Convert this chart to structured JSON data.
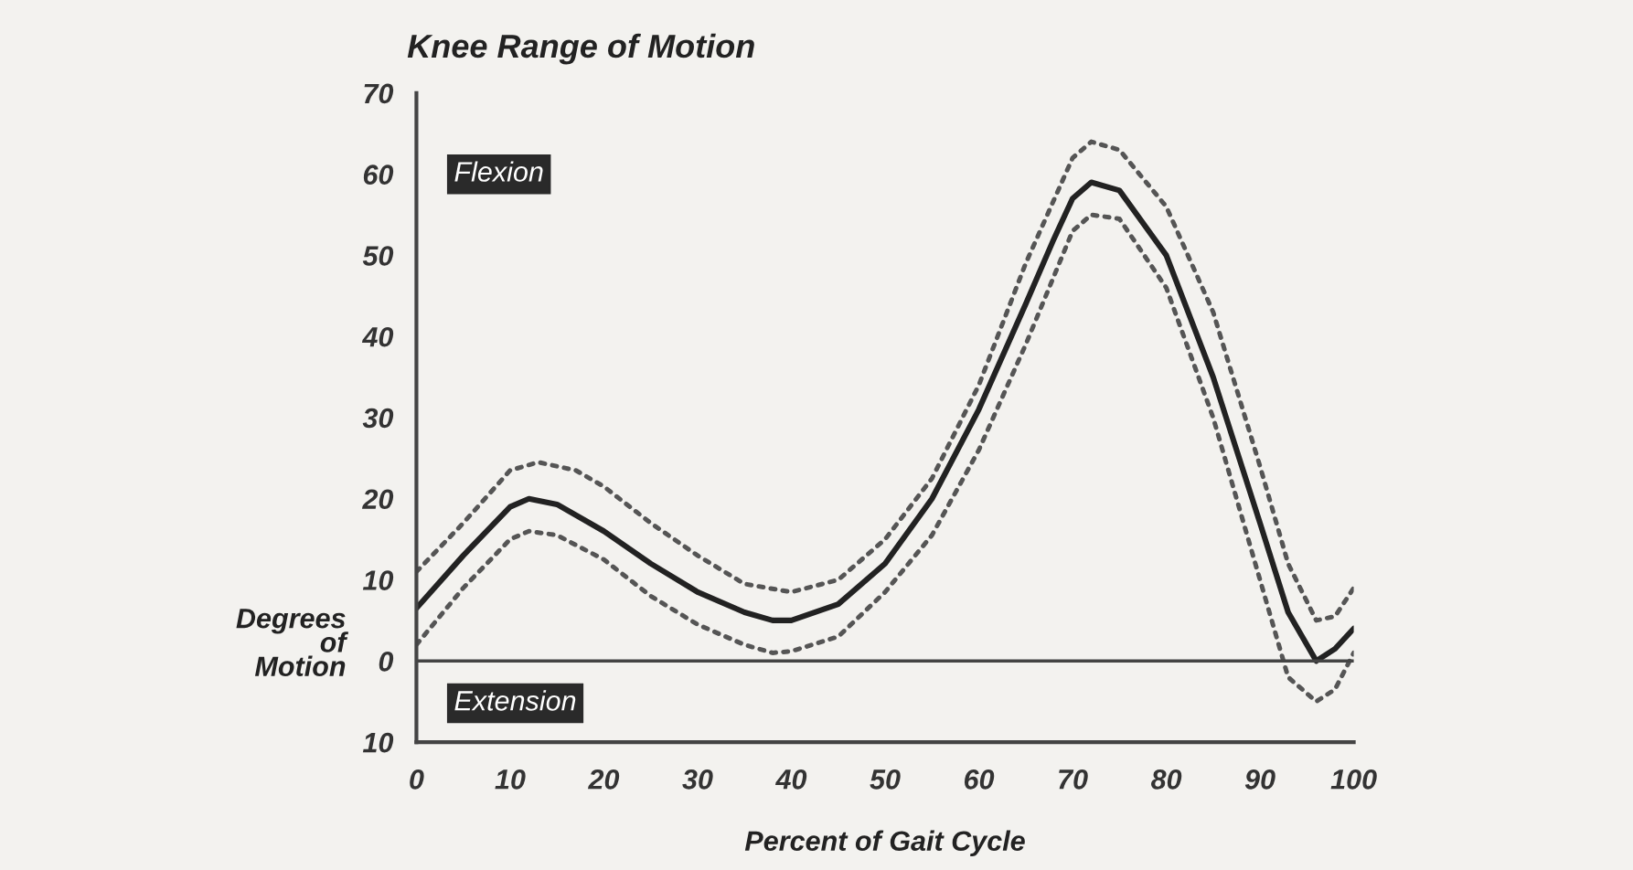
{
  "chart_data": {
    "type": "line",
    "title": "Knee Range of Motion",
    "xlabel": "Percent of Gait Cycle",
    "ylabel": "Degrees\nof\nMotion",
    "annotations": [
      "Flexion",
      "Extension"
    ],
    "x": [
      0,
      5,
      10,
      12,
      15,
      20,
      25,
      30,
      35,
      38,
      40,
      45,
      50,
      55,
      60,
      65,
      68,
      70,
      72,
      75,
      80,
      85,
      90,
      93,
      96,
      98,
      100
    ],
    "series": [
      {
        "color": "#555555",
        "line_style": "dotted",
        "x": [
          0,
          5,
          10,
          13,
          17,
          20,
          25,
          30,
          35,
          40,
          45,
          50,
          55,
          60,
          65,
          70,
          72,
          75,
          80,
          85,
          90,
          93,
          96,
          98,
          100
        ],
        "values": [
          11,
          17,
          23.5,
          24.5,
          23.5,
          21.5,
          17,
          13,
          9.5,
          8.5,
          10,
          15,
          22.5,
          34,
          49,
          62,
          64,
          63,
          56,
          43,
          24,
          12,
          5,
          5.5,
          9
        ]
      },
      {
        "color": "#222222",
        "line_style": "solid",
        "values": [
          6.5,
          13,
          19,
          20,
          19.3,
          16,
          12,
          8.5,
          6,
          5,
          5,
          7,
          12,
          20,
          31,
          44,
          52,
          57,
          59,
          58,
          50,
          35,
          17,
          6,
          0,
          1.5,
          4
        ]
      },
      {
        "color": "#555555",
        "line_style": "dotted",
        "x": [
          0,
          5,
          10,
          12,
          15,
          20,
          25,
          30,
          35,
          38,
          40,
          45,
          50,
          55,
          60,
          65,
          70,
          72,
          75,
          80,
          85,
          90,
          93,
          96,
          98,
          100
        ],
        "values": [
          2,
          9,
          15,
          16,
          15.5,
          12.5,
          8,
          4.5,
          2,
          1,
          1.2,
          3,
          8.5,
          15.5,
          26,
          39,
          53,
          55,
          54.5,
          46,
          30,
          10,
          -2,
          -5,
          -3.5,
          1
        ]
      }
    ],
    "xlim": [
      0,
      100
    ],
    "ylim": [
      -10,
      70
    ],
    "xticks": [
      0,
      10,
      20,
      30,
      40,
      50,
      60,
      70,
      80,
      90,
      100
    ],
    "yticks": [
      {
        "value": -10,
        "label": "10"
      },
      0,
      10,
      20,
      30,
      40,
      50,
      60,
      70
    ],
    "ref_lines": [
      {
        "axis": "y",
        "value": 0,
        "color": "#444444"
      }
    ],
    "grid": false,
    "legend": false,
    "marker": "none"
  }
}
